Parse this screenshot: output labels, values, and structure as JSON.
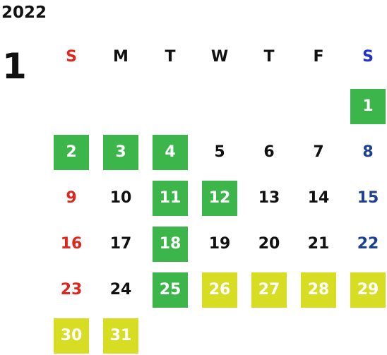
{
  "calendar": {
    "year": "2022",
    "month": "1",
    "weekdays": [
      "S",
      "M",
      "T",
      "W",
      "T",
      "F",
      "S"
    ],
    "colors": {
      "green": "#3cb54a",
      "yellow": "#d7dd23",
      "sunday": "#e0261c",
      "saturday": "#1b3f92"
    },
    "weeks": [
      [
        {
          "d": ""
        },
        {
          "d": ""
        },
        {
          "d": ""
        },
        {
          "d": ""
        },
        {
          "d": ""
        },
        {
          "d": ""
        },
        {
          "d": "1",
          "hl": "green"
        }
      ],
      [
        {
          "d": "2",
          "hl": "green"
        },
        {
          "d": "3",
          "hl": "green"
        },
        {
          "d": "4",
          "hl": "green"
        },
        {
          "d": "5"
        },
        {
          "d": "6"
        },
        {
          "d": "7"
        },
        {
          "d": "8"
        }
      ],
      [
        {
          "d": "9"
        },
        {
          "d": "10"
        },
        {
          "d": "11",
          "hl": "green"
        },
        {
          "d": "12",
          "hl": "green"
        },
        {
          "d": "13"
        },
        {
          "d": "14"
        },
        {
          "d": "15"
        }
      ],
      [
        {
          "d": "16"
        },
        {
          "d": "17"
        },
        {
          "d": "18",
          "hl": "green"
        },
        {
          "d": "19"
        },
        {
          "d": "20"
        },
        {
          "d": "21"
        },
        {
          "d": "22"
        }
      ],
      [
        {
          "d": "23"
        },
        {
          "d": "24"
        },
        {
          "d": "25",
          "hl": "green"
        },
        {
          "d": "26",
          "hl": "yellow"
        },
        {
          "d": "27",
          "hl": "yellow"
        },
        {
          "d": "28",
          "hl": "yellow"
        },
        {
          "d": "29",
          "hl": "yellow"
        }
      ],
      [
        {
          "d": "30",
          "hl": "yellow"
        },
        {
          "d": "31",
          "hl": "yellow"
        },
        {
          "d": ""
        },
        {
          "d": ""
        },
        {
          "d": ""
        },
        {
          "d": ""
        },
        {
          "d": ""
        }
      ]
    ]
  }
}
